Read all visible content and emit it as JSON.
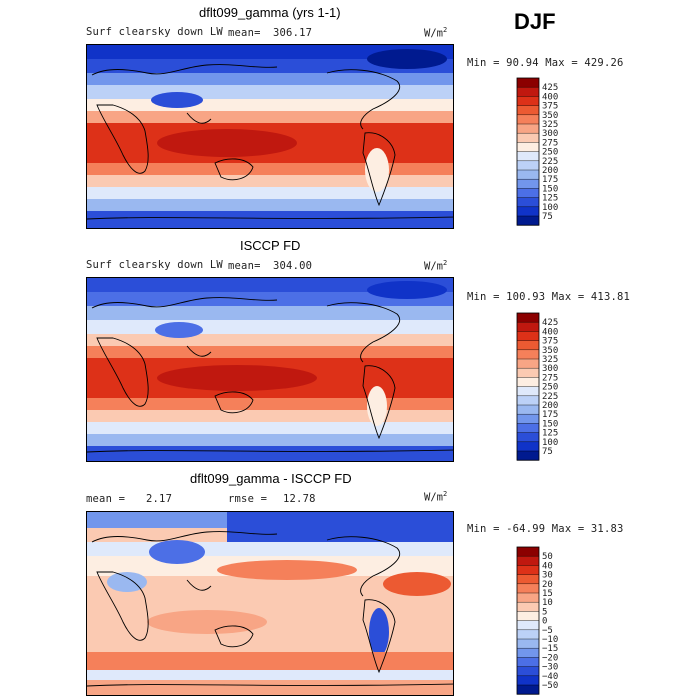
{
  "season": "DJF",
  "units": "W/m",
  "units_exp": "2",
  "chart_data": [
    {
      "type": "heatmap",
      "title": "dflt099_gamma (yrs 1-1)",
      "field_label": "Surf clearsky down LW",
      "mean_label": "mean=",
      "mean": "306.17",
      "range_text": "Min =  90.94 Max = 429.26",
      "colorbar_levels": [
        "425",
        "400",
        "375",
        "350",
        "325",
        "300",
        "275",
        "250",
        "225",
        "200",
        "175",
        "150",
        "125",
        "100",
        "75"
      ],
      "colorbar_colors": [
        "#8b0000",
        "#c0180f",
        "#dd3118",
        "#ec5a32",
        "#f5805a",
        "#f8a585",
        "#fbcab2",
        "#fdeee2",
        "#dfe9fb",
        "#bcd1f7",
        "#9ab8f0",
        "#7296ec",
        "#4c6fe6",
        "#2b4ed8",
        "#1033c8",
        "#001a8f"
      ]
    },
    {
      "type": "heatmap",
      "title": "ISCCP FD",
      "field_label": "Surf clearsky down LW",
      "mean_label": "mean=",
      "mean": "304.00",
      "range_text": "Min = 100.93 Max = 413.81",
      "colorbar_levels": [
        "425",
        "400",
        "375",
        "350",
        "325",
        "300",
        "275",
        "250",
        "225",
        "200",
        "175",
        "150",
        "125",
        "100",
        "75"
      ],
      "colorbar_colors": [
        "#8b0000",
        "#c0180f",
        "#dd3118",
        "#ec5a32",
        "#f5805a",
        "#f8a585",
        "#fbcab2",
        "#fdeee2",
        "#dfe9fb",
        "#bcd1f7",
        "#9ab8f0",
        "#7296ec",
        "#4c6fe6",
        "#2b4ed8",
        "#1033c8",
        "#001a8f"
      ]
    },
    {
      "type": "heatmap",
      "title": "dflt099_gamma - ISCCP FD",
      "mean_label": "mean =",
      "mean": "2.17",
      "rmse_label": "rmse =",
      "rmse": "12.78",
      "range_text": "Min = -64.99 Max =  31.83",
      "colorbar_levels": [
        "50",
        "40",
        "30",
        "20",
        "15",
        "10",
        "5",
        "0",
        "−5",
        "−10",
        "−15",
        "−20",
        "−30",
        "−40",
        "−50"
      ],
      "colorbar_colors": [
        "#8b0000",
        "#c0180f",
        "#dd3118",
        "#ec5a32",
        "#f5805a",
        "#f8a585",
        "#fbcab2",
        "#fdeee2",
        "#dfe9fb",
        "#bcd1f7",
        "#9ab8f0",
        "#7296ec",
        "#4c6fe6",
        "#2b4ed8",
        "#1033c8",
        "#001a8f"
      ]
    }
  ]
}
